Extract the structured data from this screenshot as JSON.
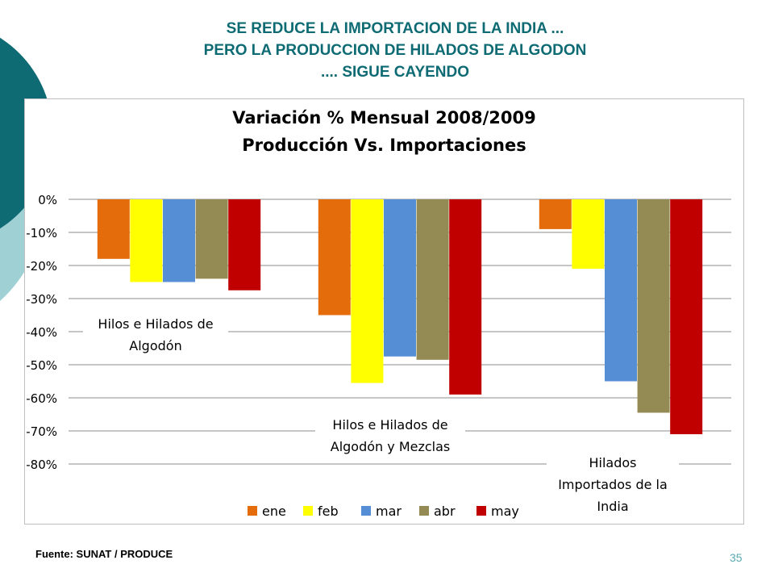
{
  "slide": {
    "title_lines": [
      "SE REDUCE LA IMPORTACION DE LA INDIA ...",
      "PERO LA PRODUCCION DE HILADOS DE ALGODON",
      ".... SIGUE CAYENDO"
    ],
    "source": "Fuente: SUNAT / PRODUCE",
    "page_number": "35",
    "colors": {
      "title": "#0e6b73",
      "deco_dark": "#0e6b73",
      "deco_light": "#9fd0d4"
    }
  },
  "chart_data": {
    "type": "bar",
    "title": [
      "Variación % Mensual 2008/2009",
      "Producción Vs. Importaciones"
    ],
    "categories": [
      "Hilos e Hilados de Algodón",
      "Hilos e Hilados de Algodón y Mezclas",
      "Hilados Importados de la India"
    ],
    "category_label_lines": [
      [
        "Hilos e Hilados de",
        "Algodón"
      ],
      [
        "Hilos e Hilados de",
        "Algodón y Mezclas"
      ],
      [
        "Hilados",
        "Importados de la",
        "India"
      ]
    ],
    "series": [
      {
        "name": "ene",
        "color": "#e46c0a",
        "values": [
          -18,
          -35,
          -9
        ]
      },
      {
        "name": "feb",
        "color": "#ffff00",
        "values": [
          -25,
          -55.5,
          -21
        ]
      },
      {
        "name": "mar",
        "color": "#558ed5",
        "values": [
          -25,
          -47.5,
          -55
        ]
      },
      {
        "name": "abr",
        "color": "#948a54",
        "values": [
          -24,
          -48.5,
          -64.5
        ]
      },
      {
        "name": "may",
        "color": "#c00000",
        "values": [
          -27.5,
          -59,
          -71
        ]
      }
    ],
    "ylim": [
      -80,
      0
    ],
    "yticks": [
      0,
      -10,
      -20,
      -30,
      -40,
      -50,
      -60,
      -70,
      -80
    ],
    "ytick_labels": [
      "0%",
      "-10%",
      "-20%",
      "-30%",
      "-40%",
      "-50%",
      "-60%",
      "-70%",
      "-80%"
    ],
    "grid": true,
    "legend_position": "bottom"
  }
}
